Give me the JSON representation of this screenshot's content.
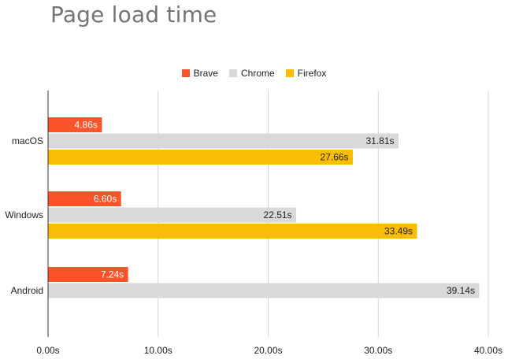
{
  "chart_data": {
    "type": "bar",
    "orientation": "horizontal",
    "title": "Page load time",
    "categories": [
      "macOS",
      "Windows",
      "Android"
    ],
    "series": [
      {
        "name": "Brave",
        "color": "#fb542b",
        "values": [
          4.86,
          6.6,
          7.24
        ],
        "labels": [
          "4.86s",
          "6.60s",
          "7.24s"
        ],
        "label_color": "#ffffff"
      },
      {
        "name": "Chrome",
        "color": "#d9d9d9",
        "values": [
          31.81,
          22.51,
          39.14
        ],
        "labels": [
          "31.81s",
          "22.51s",
          "39.14s"
        ],
        "label_color": "#222222"
      },
      {
        "name": "Firefox",
        "color": "#fbbc04",
        "values": [
          27.66,
          33.49,
          null
        ],
        "labels": [
          "27.66s",
          "33.49s",
          ""
        ],
        "label_color": "#222222"
      }
    ],
    "xlim": [
      0,
      40
    ],
    "xticks": [
      "0.00s",
      "10.00s",
      "20.00s",
      "30.00s",
      "40.00s"
    ],
    "legend_position": "top-center",
    "grid": true
  }
}
